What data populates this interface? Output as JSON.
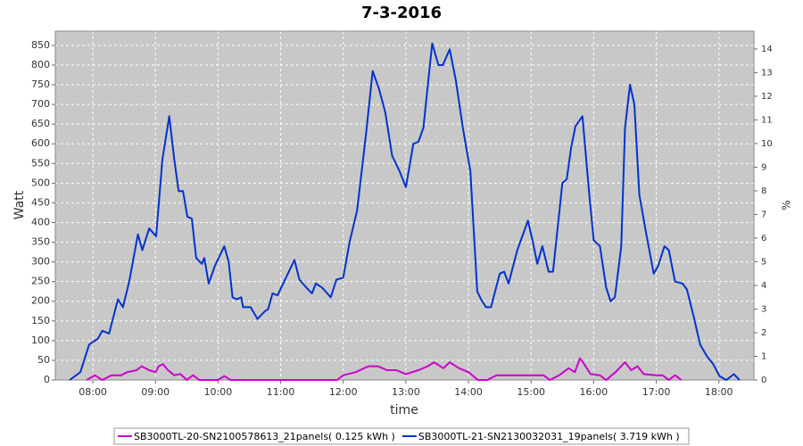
{
  "chart_data": {
    "type": "line",
    "title": "7-3-2016",
    "x_label": "time",
    "y_label": "Watt",
    "y2_label": "%",
    "xlim": [
      7.4,
      18.56
    ],
    "ylim": [
      0,
      886
    ],
    "y2lim": [
      0,
      14.75
    ],
    "grid": true,
    "legend": "bottom",
    "xticks": [
      {
        "value": 8,
        "label": "08:00"
      },
      {
        "value": 9,
        "label": "09:00"
      },
      {
        "value": 10,
        "label": "10:00"
      },
      {
        "value": 11,
        "label": "11:00"
      },
      {
        "value": 12,
        "label": "12:00"
      },
      {
        "value": 13,
        "label": "13:00"
      },
      {
        "value": 14,
        "label": "14:00"
      },
      {
        "value": 15,
        "label": "15:00"
      },
      {
        "value": 16,
        "label": "16:00"
      },
      {
        "value": 17,
        "label": "17:00"
      },
      {
        "value": 18,
        "label": "18:00"
      }
    ],
    "yticks": [
      0,
      50,
      100,
      150,
      200,
      250,
      300,
      350,
      400,
      450,
      500,
      550,
      600,
      650,
      700,
      750,
      800,
      850
    ],
    "y2ticks": [
      0,
      1,
      2,
      3,
      4,
      5,
      6,
      7,
      8,
      9,
      10,
      11,
      12,
      13,
      14
    ],
    "series": [
      {
        "name": "SB3000TL-20-SN2100578613_21panels( 0.125 kWh )",
        "color": "#cc00cc",
        "x": [
          7.9,
          8.03,
          8.15,
          8.3,
          8.45,
          8.55,
          8.7,
          8.78,
          8.9,
          9.0,
          9.05,
          9.12,
          9.2,
          9.3,
          9.4,
          9.5,
          9.6,
          9.7,
          10.0,
          10.1,
          10.2,
          11.9,
          12.0,
          12.2,
          12.4,
          12.55,
          12.7,
          12.85,
          13.0,
          13.2,
          13.35,
          13.45,
          13.6,
          13.7,
          13.85,
          14.0,
          14.15,
          14.3,
          14.45,
          14.6,
          14.75,
          15.0,
          15.2,
          15.3,
          15.45,
          15.6,
          15.7,
          15.78,
          15.85,
          15.95,
          16.1,
          16.2,
          16.35,
          16.5,
          16.6,
          16.7,
          16.8,
          17.0,
          17.1,
          17.2,
          17.3,
          17.4
        ],
        "values": [
          0,
          12,
          0,
          12,
          12,
          20,
          25,
          35,
          25,
          20,
          35,
          40,
          25,
          12,
          15,
          0,
          12,
          0,
          0,
          10,
          0,
          0,
          12,
          20,
          35,
          35,
          25,
          25,
          15,
          25,
          35,
          45,
          30,
          45,
          30,
          20,
          0,
          0,
          12,
          12,
          12,
          12,
          12,
          0,
          12,
          30,
          20,
          55,
          40,
          15,
          12,
          0,
          20,
          45,
          25,
          35,
          15,
          12,
          12,
          0,
          12,
          0
        ]
      },
      {
        "name": "SB3000TL-21-SN2130032031_19panels( 3.719 kWh )",
        "color": "#0033cc",
        "x": [
          7.63,
          7.8,
          7.94,
          8.08,
          8.15,
          8.26,
          8.4,
          8.48,
          8.58,
          8.72,
          8.79,
          8.9,
          9.01,
          9.11,
          9.22,
          9.3,
          9.37,
          9.44,
          9.51,
          9.58,
          9.65,
          9.74,
          9.78,
          9.85,
          9.95,
          10.1,
          10.17,
          10.23,
          10.3,
          10.37,
          10.4,
          10.52,
          10.63,
          10.75,
          10.8,
          10.87,
          10.95,
          11.22,
          11.3,
          11.41,
          11.5,
          11.56,
          11.66,
          11.8,
          11.89,
          12.0,
          12.1,
          12.22,
          12.36,
          12.47,
          12.57,
          12.67,
          12.78,
          12.9,
          13.0,
          13.12,
          13.2,
          13.28,
          13.42,
          13.52,
          13.59,
          13.7,
          13.8,
          13.91,
          14.03,
          14.14,
          14.2,
          14.28,
          14.36,
          14.5,
          14.57,
          14.64,
          14.78,
          14.86,
          14.95,
          15.03,
          15.1,
          15.18,
          15.28,
          15.35,
          15.5,
          15.57,
          15.64,
          15.71,
          15.82,
          15.93,
          16.0,
          16.1,
          16.2,
          16.27,
          16.34,
          16.44,
          16.5,
          16.58,
          16.65,
          16.73,
          16.83,
          16.96,
          17.03,
          17.13,
          17.2,
          17.3,
          17.42,
          17.49,
          17.6,
          17.7,
          17.81,
          17.91,
          18.01,
          18.12,
          18.24,
          18.33
        ],
        "values": [
          0,
          20,
          90,
          105,
          125,
          118,
          205,
          185,
          250,
          370,
          330,
          385,
          365,
          560,
          670,
          560,
          480,
          480,
          415,
          410,
          310,
          295,
          310,
          245,
          290,
          340,
          300,
          210,
          205,
          210,
          185,
          185,
          155,
          175,
          180,
          220,
          215,
          305,
          255,
          235,
          220,
          245,
          235,
          210,
          255,
          260,
          350,
          430,
          620,
          785,
          740,
          680,
          570,
          530,
          490,
          600,
          605,
          640,
          855,
          800,
          800,
          840,
          760,
          640,
          530,
          225,
          205,
          185,
          185,
          270,
          275,
          245,
          330,
          365,
          405,
          350,
          295,
          340,
          275,
          275,
          500,
          510,
          590,
          645,
          670,
          470,
          355,
          340,
          235,
          200,
          210,
          340,
          640,
          750,
          700,
          470,
          380,
          270,
          290,
          340,
          330,
          250,
          245,
          230,
          160,
          90,
          60,
          40,
          10,
          0,
          15,
          0
        ]
      }
    ]
  }
}
